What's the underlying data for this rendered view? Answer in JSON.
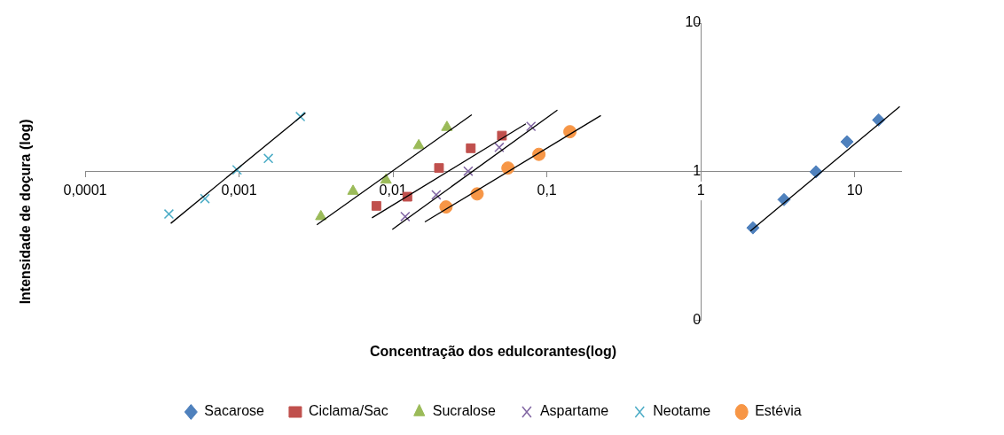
{
  "chart_data": {
    "type": "scatter",
    "xlabel": "Concentração dos edulcorantes(log)",
    "ylabel": "Intensidade de doçura (log)",
    "log": "xy",
    "grid": false,
    "legend": "bottom",
    "xlim": [
      0.0001,
      20
    ],
    "xticks": [
      {
        "value": 0.0001,
        "label": "0,0001"
      },
      {
        "value": 0.001,
        "label": "0,001"
      },
      {
        "value": 0.01,
        "label": "0,01"
      },
      {
        "value": 0.1,
        "label": "0,1"
      },
      1,
      10
    ],
    "ylim": [
      0.1,
      10
    ],
    "yticks": [
      {
        "value": 0.1,
        "label": "0"
      },
      1,
      10
    ],
    "series": [
      {
        "name": "Sacarose",
        "color": "#4f81bd",
        "marker": "diamond",
        "x": [
          2.18,
          3.47,
          5.6,
          8.9,
          14.3
        ],
        "values": [
          0.42,
          0.65,
          1.0,
          1.59,
          2.23
        ]
      },
      {
        "name": "Ciclama/Sac",
        "color": "#c0504d",
        "marker": "square",
        "x": [
          0.0078,
          0.0124,
          0.0199,
          0.032,
          0.051
        ],
        "values": [
          0.59,
          0.68,
          1.06,
          1.44,
          1.75
        ]
      },
      {
        "name": "Sucralose",
        "color": "#9bbb59",
        "marker": "triangle",
        "x": [
          0.0034,
          0.0055,
          0.009,
          0.0147,
          0.0224
        ],
        "values": [
          0.5,
          0.74,
          0.88,
          1.5,
          1.99
        ]
      },
      {
        "name": "Aspartame",
        "color": "#8064a2",
        "marker": "cross",
        "x": [
          0.012,
          0.0191,
          0.0308,
          0.049,
          0.0788
        ],
        "values": [
          0.5,
          0.7,
          1.01,
          1.46,
          2.02
        ]
      },
      {
        "name": "Neotame",
        "color": "#4bacc6",
        "marker": "cross",
        "x": [
          0.00035,
          0.0006,
          0.00097,
          0.00155,
          0.0025
        ],
        "values": [
          0.52,
          0.66,
          1.03,
          1.23,
          2.35
        ]
      },
      {
        "name": "Estévia",
        "color": "#f79646",
        "marker": "circle",
        "x": [
          0.0221,
          0.0352,
          0.0558,
          0.0887,
          0.141
        ],
        "values": [
          0.58,
          0.71,
          1.06,
          1.31,
          1.86
        ]
      },
      {
        "type": "line",
        "color": "#000000",
        "marker": "none",
        "x": [
          2.1,
          19.6
        ],
        "values": [
          0.4,
          2.75
        ]
      },
      {
        "type": "line",
        "color": "#000000",
        "marker": "none",
        "x": [
          0.0073,
          0.073
        ],
        "values": [
          0.49,
          2.1
        ]
      },
      {
        "type": "line",
        "color": "#000000",
        "marker": "none",
        "x": [
          0.0032,
          0.0325
        ],
        "values": [
          0.44,
          2.42
        ]
      },
      {
        "type": "line",
        "color": "#000000",
        "marker": "none",
        "x": [
          0.0099,
          0.117
        ],
        "values": [
          0.41,
          2.6
        ]
      },
      {
        "type": "line",
        "color": "#000000",
        "marker": "none",
        "x": [
          0.00036,
          0.0027
        ],
        "values": [
          0.45,
          2.49
        ]
      },
      {
        "type": "line",
        "color": "#000000",
        "marker": "none",
        "x": [
          0.0161,
          0.224
        ],
        "values": [
          0.46,
          2.39
        ]
      }
    ]
  }
}
